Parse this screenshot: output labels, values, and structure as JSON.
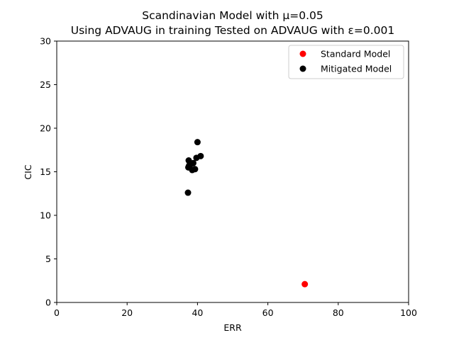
{
  "chart_data": {
    "type": "scatter",
    "title": "Scandinavian Model with μ=0.05",
    "subtitle": "Using ADVAUG in training Tested on ADVAUG with ε=0.001",
    "xlabel": "ERR",
    "ylabel": "CIC",
    "xlim": [
      0,
      100
    ],
    "ylim": [
      0,
      30
    ],
    "xticks": [
      0,
      20,
      40,
      60,
      80,
      100
    ],
    "yticks": [
      0,
      5,
      10,
      15,
      20,
      25,
      30
    ],
    "grid": false,
    "legend_position": "top-right",
    "series": [
      {
        "name": "Standard Model",
        "color": "#ff0000",
        "points": [
          {
            "x": 70.5,
            "y": 2.1
          }
        ]
      },
      {
        "name": "Mitigated Model",
        "color": "#000000",
        "points": [
          {
            "x": 40.0,
            "y": 18.4
          },
          {
            "x": 40.9,
            "y": 16.8
          },
          {
            "x": 39.7,
            "y": 16.6
          },
          {
            "x": 37.5,
            "y": 16.3
          },
          {
            "x": 38.8,
            "y": 16.0
          },
          {
            "x": 38.2,
            "y": 15.9
          },
          {
            "x": 37.6,
            "y": 15.7
          },
          {
            "x": 37.4,
            "y": 15.5
          },
          {
            "x": 39.3,
            "y": 15.3
          },
          {
            "x": 38.5,
            "y": 15.2
          },
          {
            "x": 37.3,
            "y": 12.6
          }
        ]
      }
    ]
  }
}
